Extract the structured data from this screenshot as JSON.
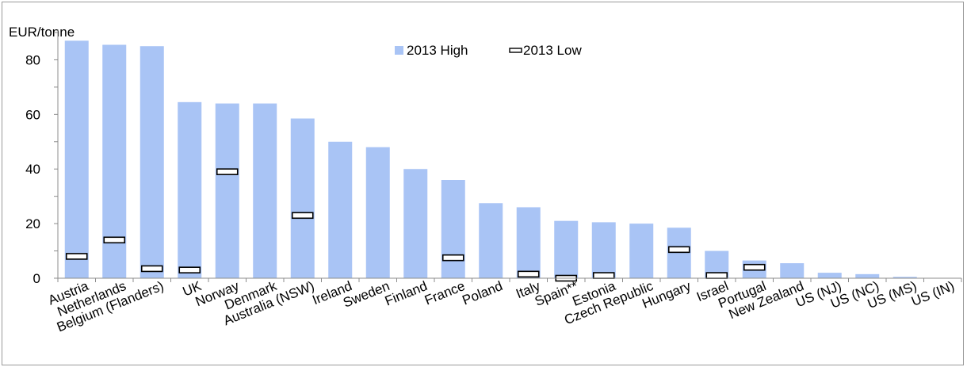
{
  "chart_data": {
    "type": "bar",
    "ylabel": "EUR/tonne",
    "ylim": [
      0,
      90
    ],
    "yticks": [
      0,
      20,
      40,
      60,
      80
    ],
    "grid": false,
    "legend_position": "top-center",
    "categories": [
      "Austria",
      "Netherlands",
      "Belgium (Flanders)",
      "UK",
      "Norway",
      "Denmark",
      "Australia (NSW)",
      "Ireland",
      "Sweden",
      "Finland",
      "France",
      "Poland",
      "Italy",
      "Spain**",
      "Estonia",
      "Czech Republic",
      "Hungary",
      "Israel",
      "Portugal",
      "New Zealand",
      "US (NJ)",
      "US (NC)",
      "US (MS)",
      "US (IN)"
    ],
    "series": [
      {
        "name": "2013 High",
        "kind": "bar",
        "color": "#a9c4f5",
        "values": [
          87,
          85.5,
          85,
          64.5,
          64,
          64,
          58.5,
          50,
          48,
          40,
          36,
          27.5,
          26,
          21,
          20.5,
          20,
          18.5,
          10,
          6.5,
          5.5,
          2,
          1.5,
          0.5,
          0
        ]
      },
      {
        "name": "2013 Low",
        "kind": "marker",
        "values": [
          8,
          14,
          3.5,
          3,
          39,
          null,
          23,
          null,
          null,
          null,
          7.5,
          null,
          1.5,
          0,
          1,
          null,
          10.5,
          1,
          4,
          null,
          null,
          null,
          null,
          null
        ]
      }
    ]
  }
}
